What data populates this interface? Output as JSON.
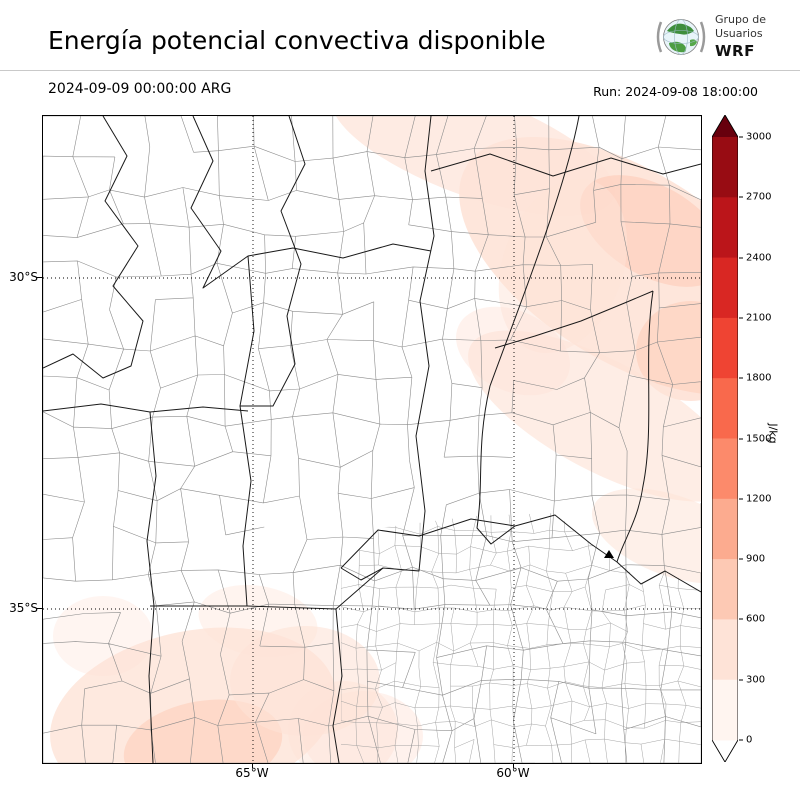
{
  "header": {
    "title": "Energía potencial convectiva disponible",
    "valid_time": "2024-09-09 00:00:00 ARG",
    "run_label": "Run: 2024-09-08 18:00:00",
    "logo": {
      "line1": "Grupo de",
      "line2": "Usuarios",
      "line3": "WRF"
    }
  },
  "map": {
    "lat_labels": [
      "30°S",
      "35°S"
    ],
    "lon_labels": [
      "65°W",
      "60°W"
    ]
  },
  "colorbar": {
    "unit": "J/kg",
    "ticks": [
      0,
      300,
      600,
      900,
      1200,
      1500,
      1800,
      2100,
      2400,
      2700,
      3000
    ],
    "colors_bottom_to_top": [
      "#fff5f0",
      "#fee3d7",
      "#fdc9b4",
      "#fcab8f",
      "#fc8a6b",
      "#f9694c",
      "#ef4433",
      "#d92723",
      "#bb151a",
      "#980c13"
    ],
    "over_color": "#67000d",
    "under_color": "#ffffff"
  },
  "chart_data": {
    "type": "heatmap",
    "title": "Energía potencial convectiva disponible",
    "variable": "CAPE (convective available potential energy)",
    "unit": "J/kg",
    "valid_time": "2024-09-09 00:00:00 ARG",
    "model_run": "Run: 2024-09-08 18:00:00",
    "colorbar": {
      "min": 0,
      "max": 3000,
      "step": 300,
      "ticks": [
        0,
        300,
        600,
        900,
        1200,
        1500,
        1800,
        2100,
        2400,
        2700,
        3000
      ]
    },
    "grid": {
      "lat_gridlines": [
        "30°S",
        "35°S"
      ],
      "lon_gridlines": [
        "65°W",
        "60°W"
      ],
      "style": "dotted"
    },
    "depicted_pattern": [
      {
        "region": "northeast of domain, NW-SE diagonal bands",
        "value_range_jkg": [
          0,
          600
        ]
      },
      {
        "region": "far northeast patches",
        "value_range_jkg": [
          300,
          600
        ]
      },
      {
        "region": "southwest corner of domain",
        "value_range_jkg": [
          0,
          600
        ]
      },
      {
        "region": "center and west of domain",
        "value_range_jkg": [
          0,
          0
        ]
      }
    ],
    "legend_position": "right"
  }
}
